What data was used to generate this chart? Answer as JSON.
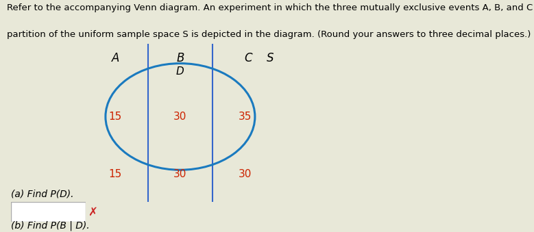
{
  "title_line1": "Refer to the accompanying Venn diagram. An experiment in which the three mutually exclusive events A, B, and C form a",
  "title_line2": "partition of the uniform sample space S is depicted in the diagram. (Round your answers to three decimal places.)",
  "title_fontsize": 9.5,
  "number_color": "#cc2200",
  "number_fontsize": 11,
  "label_fontsize": 12,
  "D_fontsize": 11,
  "ellipse_color": "#1a7abf",
  "box_color": "#3366cc",
  "background_color": "#e8e8d8",
  "question_a": "(a) Find P(D).",
  "question_b": "(b) Find P(B | D).",
  "question_fontsize": 10,
  "cross_color": "#cc2222",
  "cross_size": 12
}
